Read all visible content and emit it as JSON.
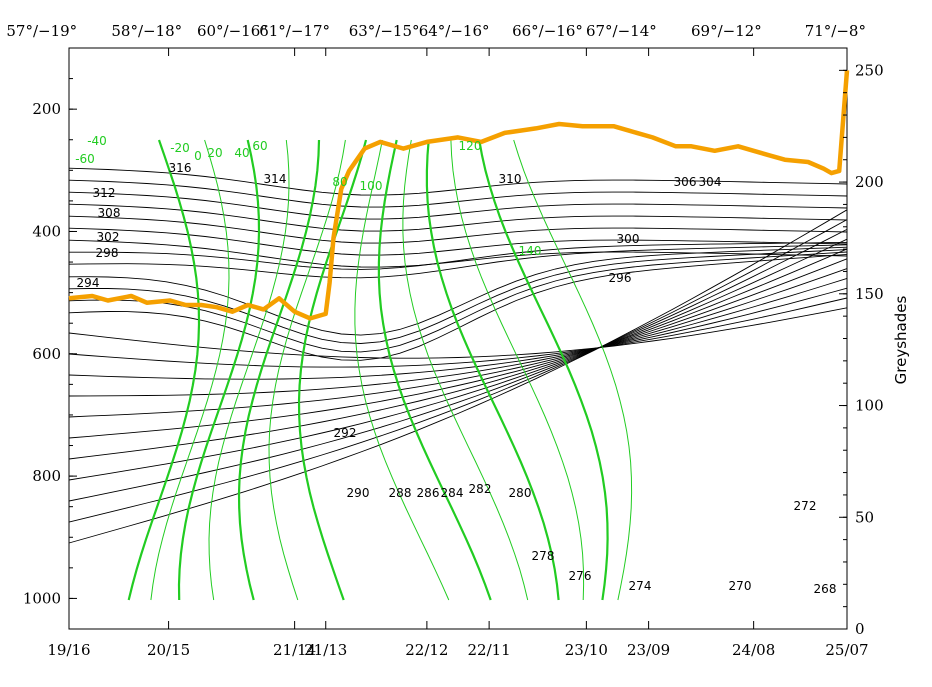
{
  "chart_data": {
    "type": "line",
    "top_axis_labels": [
      "57°/−19°",
      "58°/−18°",
      "60°/−16°",
      "61°/−17°",
      "63°/−15°",
      "64°/−16°",
      "66°/−16°",
      "67°/−14°",
      "69°/−12°",
      "71°/−8°"
    ],
    "bottom_axis_labels": [
      "19/16",
      "20/15",
      "21/14",
      "21/13",
      "22/12",
      "22/11",
      "23/10",
      "23/09",
      "24/08",
      "25/07"
    ],
    "left_axis": {
      "label": "",
      "ticks": [
        "200",
        "400",
        "600",
        "800",
        "1000"
      ],
      "range": [
        1050,
        100
      ]
    },
    "right_axis": {
      "label": "Greyshades",
      "ticks": [
        "0",
        "50",
        "100",
        "150",
        "200",
        "250"
      ],
      "range": [
        0,
        260
      ]
    },
    "series": [
      {
        "color": "#f5a000",
        "x": [
          0,
          0.03,
          0.05,
          0.08,
          0.1,
          0.13,
          0.15,
          0.17,
          0.19,
          0.21,
          0.23,
          0.25,
          0.27,
          0.29,
          0.31,
          0.33,
          0.335,
          0.34,
          0.35,
          0.36,
          0.37,
          0.38,
          0.4,
          0.43,
          0.46,
          0.5,
          0.53,
          0.56,
          0.6,
          0.63,
          0.66,
          0.7,
          0.72,
          0.75,
          0.78,
          0.8,
          0.83,
          0.86,
          0.88,
          0.9,
          0.92,
          0.95,
          0.97,
          0.98,
          0.99,
          1.0
        ],
        "y": [
          148,
          149,
          147,
          149,
          146,
          147,
          145,
          145,
          144,
          142,
          145,
          143,
          148,
          142,
          139,
          141,
          155,
          175,
          197,
          205,
          210,
          215,
          218,
          215,
          218,
          220,
          218,
          222,
          224,
          226,
          225,
          225,
          223,
          220,
          216,
          216,
          214,
          216,
          214,
          212,
          210,
          209,
          206,
          204,
          205,
          250
        ]
      }
    ],
    "contour_labels_black": [
      "316",
      "314",
      "312",
      "310",
      "308",
      "306",
      "304",
      "302",
      "300",
      "298",
      "296",
      "294",
      "292",
      "290",
      "288",
      "286",
      "284",
      "282",
      "280",
      "278",
      "276",
      "274",
      "272",
      "270",
      "268"
    ],
    "contour_labels_green": [
      "-40",
      "-60",
      "-20",
      "0",
      "20",
      "40",
      "60",
      "80",
      "100",
      "120",
      "140"
    ],
    "grid": false,
    "colors": {
      "black_contours": "#000000",
      "green_contours": "#22cc22",
      "highlight_line": "#f5a000"
    }
  }
}
